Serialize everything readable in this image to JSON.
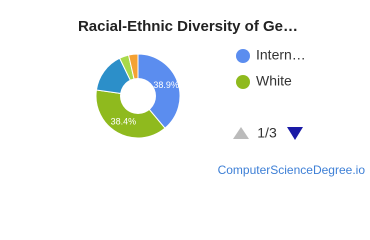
{
  "chart_data": {
    "type": "pie",
    "title": "Racial-Ethnic Diversity of Ge…",
    "categories": [
      "Intern…",
      "White",
      null,
      null,
      null
    ],
    "values": [
      38.9,
      38.4,
      15.5,
      3.6,
      3.6
    ],
    "value_labels": [
      "38.9%",
      "38.4%",
      null,
      null,
      null
    ],
    "colors": [
      "#5b8def",
      "#8fba1e",
      "#2c8fc9",
      "#a8d94a",
      "#f5a233"
    ]
  },
  "pager": "1/3",
  "footer": "ComputerScienceDegree.io"
}
